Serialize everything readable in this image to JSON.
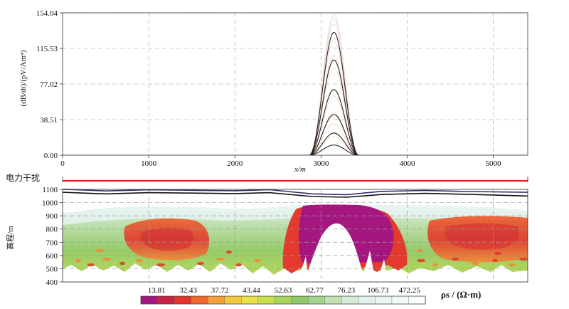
{
  "chart_data": [
    {
      "type": "line",
      "ylabel": "(dB/dt)/(pV/Am⁴)",
      "xlabel": "x/m",
      "x_ticks": [
        "0",
        "1000",
        "2000",
        "3000",
        "4000",
        "5000"
      ],
      "y_ticks": [
        "0.00",
        "38.51",
        "77.02",
        "115.53",
        "154.04"
      ],
      "xlim": [
        0,
        5400
      ],
      "ylim": [
        0,
        154.04
      ],
      "grid": true,
      "peak_x": 3150,
      "peak_halfwidth": 290,
      "series": [
        {
          "values": [
            152,
            148,
            142,
            124,
            108,
            94,
            64,
            46,
            34,
            20
          ],
          "color": "#ecdcd3"
        },
        {
          "values": [
            133,
            103,
            71,
            44,
            24,
            11
          ],
          "color": "#2b1d1d"
        }
      ]
    },
    {
      "type": "line",
      "label": "电力干扰",
      "xlim": [
        0,
        5400
      ],
      "interference_ranges": [
        [
          0,
          5400
        ]
      ],
      "color": "#d02018"
    },
    {
      "type": "heatmap",
      "ylabel": "高程/m",
      "y_ticks": [
        "1100",
        "1000",
        "900",
        "800",
        "700",
        "600",
        "500",
        "400"
      ],
      "ylim": [
        400,
        1100
      ],
      "xlim": [
        0,
        5400
      ],
      "terrain": {
        "x": [
          0,
          500,
          1000,
          1500,
          2000,
          2400,
          2900,
          3300,
          3700,
          4200,
          4700,
          5400
        ],
        "upper": [
          1101,
          1088,
          1097,
          1093,
          1090,
          1098,
          1066,
          1060,
          1085,
          1092,
          1084,
          1078
        ],
        "lower": [
          1078,
          1066,
          1075,
          1072,
          1068,
          1075,
          1046,
          1041,
          1061,
          1070,
          1063,
          1050
        ]
      },
      "colorbar": {
        "labels": [
          "13.81",
          "32.43",
          "37.72",
          "43.44",
          "52.63",
          "62.77",
          "76.23",
          "106.73",
          "472.25"
        ],
        "colors": [
          "#a3177f",
          "#c62440",
          "#e3342c",
          "#ef6a2c",
          "#f5a03a",
          "#f4c93c",
          "#e8e34a",
          "#c9df4c",
          "#a7d45a",
          "#8fc96a",
          "#a6d38c",
          "#c3e1b4",
          "#d8ecdb",
          "#e2f1ee",
          "#eaf5f4",
          "#f2f9f8",
          "#fafdfd"
        ],
        "unit": "ρs / (Ω·m)"
      }
    }
  ]
}
